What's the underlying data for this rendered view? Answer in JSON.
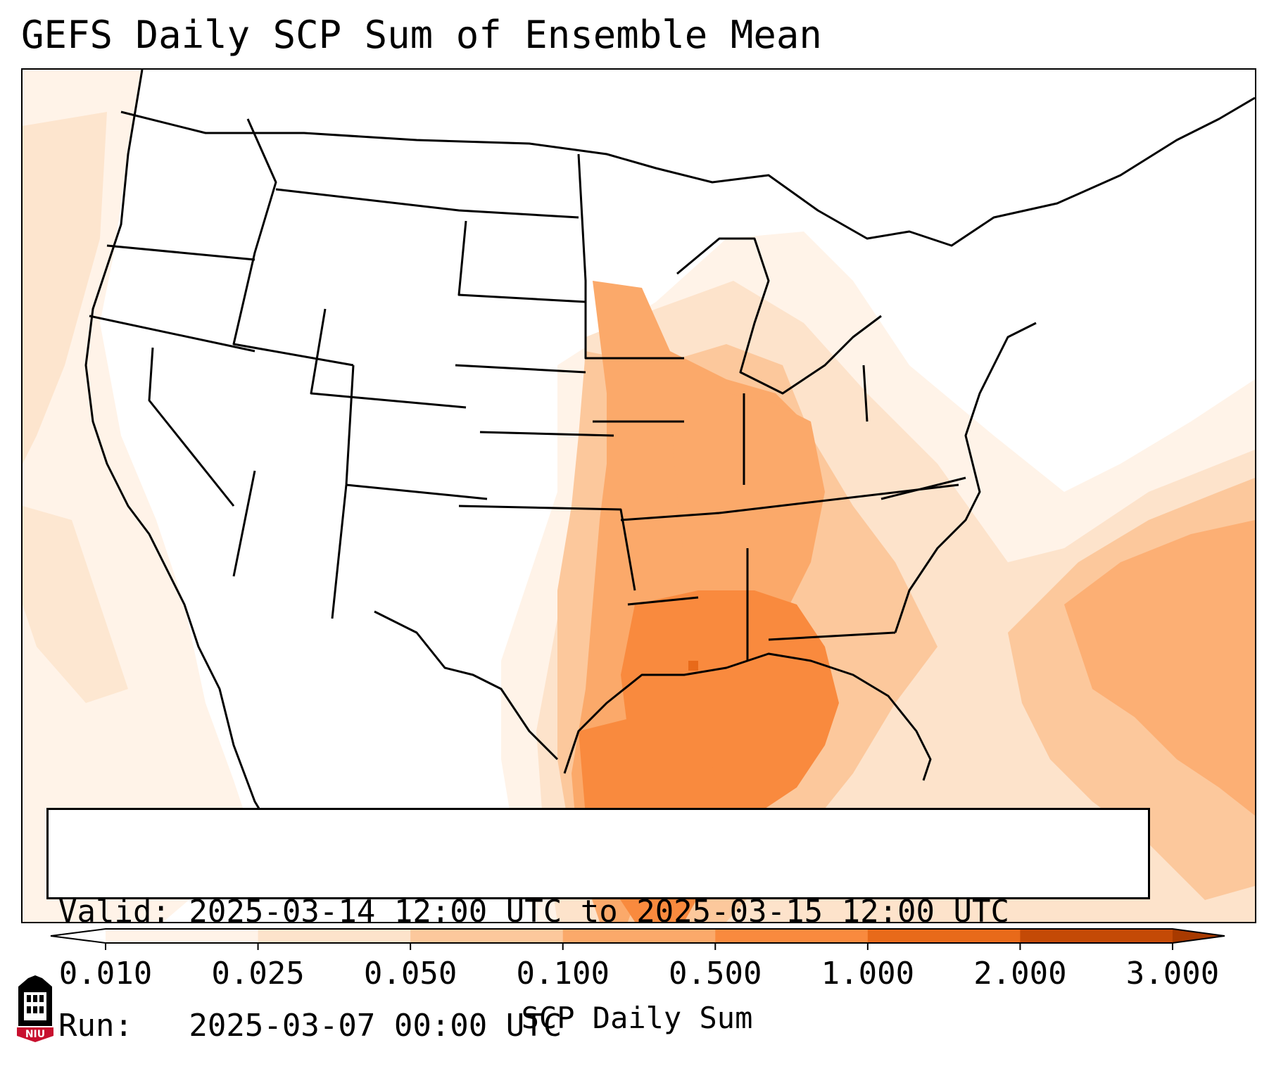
{
  "title": "GEFS Daily SCP Sum of Ensemble Mean",
  "info": {
    "valid_line": "Valid: 2025-03-14 12:00 UTC to 2025-03-15 12:00 UTC",
    "run_line": "Run:   2025-03-07 00:00 UTC"
  },
  "colorbar": {
    "title": "SCP Daily Sum",
    "ticks": [
      "0.010",
      "0.025",
      "0.050",
      "0.100",
      "0.500",
      "1.000",
      "2.000",
      "3.000"
    ],
    "colors": [
      "#fff3e8",
      "#fde3cb",
      "#fcc89c",
      "#fba96a",
      "#f98a3e",
      "#e86a1a",
      "#c44a06"
    ],
    "extend": "both"
  },
  "map": {
    "region": "CONUS",
    "shading_colors": {
      "light": "#fff3e8",
      "light2": "#fde3cb",
      "mid": "#fcc89c",
      "mid2": "#fba96a",
      "dark": "#f98a3e",
      "darker": "#e86a1a"
    },
    "boundary_color": "#000000"
  },
  "logo": {
    "text": "NIU",
    "color": "#c8102e"
  }
}
